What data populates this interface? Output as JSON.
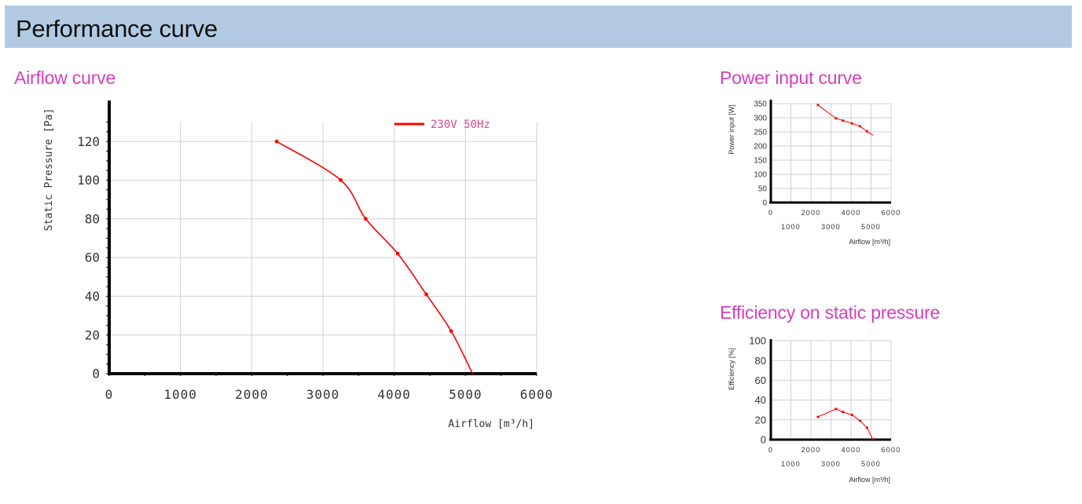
{
  "header": {
    "title": "Performance curve"
  },
  "colors": {
    "header_bg": "#b2cbe3",
    "section_title": "#d63fbd",
    "series": "#ff0000",
    "grid": "#d0d0d0",
    "axis": "#000000"
  },
  "chart_data": [
    {
      "type": "line",
      "title": "Airflow curve",
      "xlabel": "Airflow [m³/h]",
      "ylabel": "Static Pressure [Pa]",
      "xlim": [
        0,
        6000
      ],
      "ylim": [
        0,
        130
      ],
      "x_ticks": [
        "0",
        "1000",
        "2000",
        "3000",
        "4000",
        "5000",
        "6000"
      ],
      "y_ticks": [
        "0",
        "20",
        "40",
        "60",
        "80",
        "100",
        "120"
      ],
      "grid": true,
      "legend_position": "top-right",
      "series": [
        {
          "name": "230V 50Hz",
          "x": [
            2350,
            3250,
            3600,
            4050,
            4450,
            4800,
            5100
          ],
          "y": [
            120,
            100,
            80,
            62,
            41,
            22,
            0
          ]
        }
      ]
    },
    {
      "type": "line",
      "title": "Power input curve",
      "xlabel": "Airflow [m³/h]",
      "ylabel": "Power input [W]",
      "xlim": [
        0,
        6000
      ],
      "ylim": [
        0,
        350
      ],
      "x_ticks": [
        "0",
        "1000",
        "2000",
        "3000",
        "4000",
        "5000",
        "6000"
      ],
      "y_ticks": [
        "0",
        "50",
        "100",
        "150",
        "200",
        "250",
        "300",
        "350"
      ],
      "grid": true,
      "series": [
        {
          "x": [
            2350,
            3250,
            3600,
            4050,
            4450,
            4800,
            5100
          ],
          "y": [
            345,
            298,
            290,
            280,
            270,
            252,
            238
          ]
        }
      ]
    },
    {
      "type": "line",
      "title": "Efficiency on static pressure",
      "xlabel": "Airflow [m³/h]",
      "ylabel": "Efficiency [%]",
      "xlim": [
        0,
        6000
      ],
      "ylim": [
        0,
        100
      ],
      "x_ticks": [
        "0",
        "1000",
        "2000",
        "3000",
        "4000",
        "5000",
        "6000"
      ],
      "y_ticks": [
        "0",
        "20",
        "40",
        "60",
        "80",
        "100"
      ],
      "grid": true,
      "series": [
        {
          "x": [
            2350,
            3250,
            3600,
            4050,
            4450,
            4800,
            5100
          ],
          "y": [
            23,
            31,
            28,
            25,
            19,
            12,
            0
          ]
        }
      ]
    }
  ]
}
